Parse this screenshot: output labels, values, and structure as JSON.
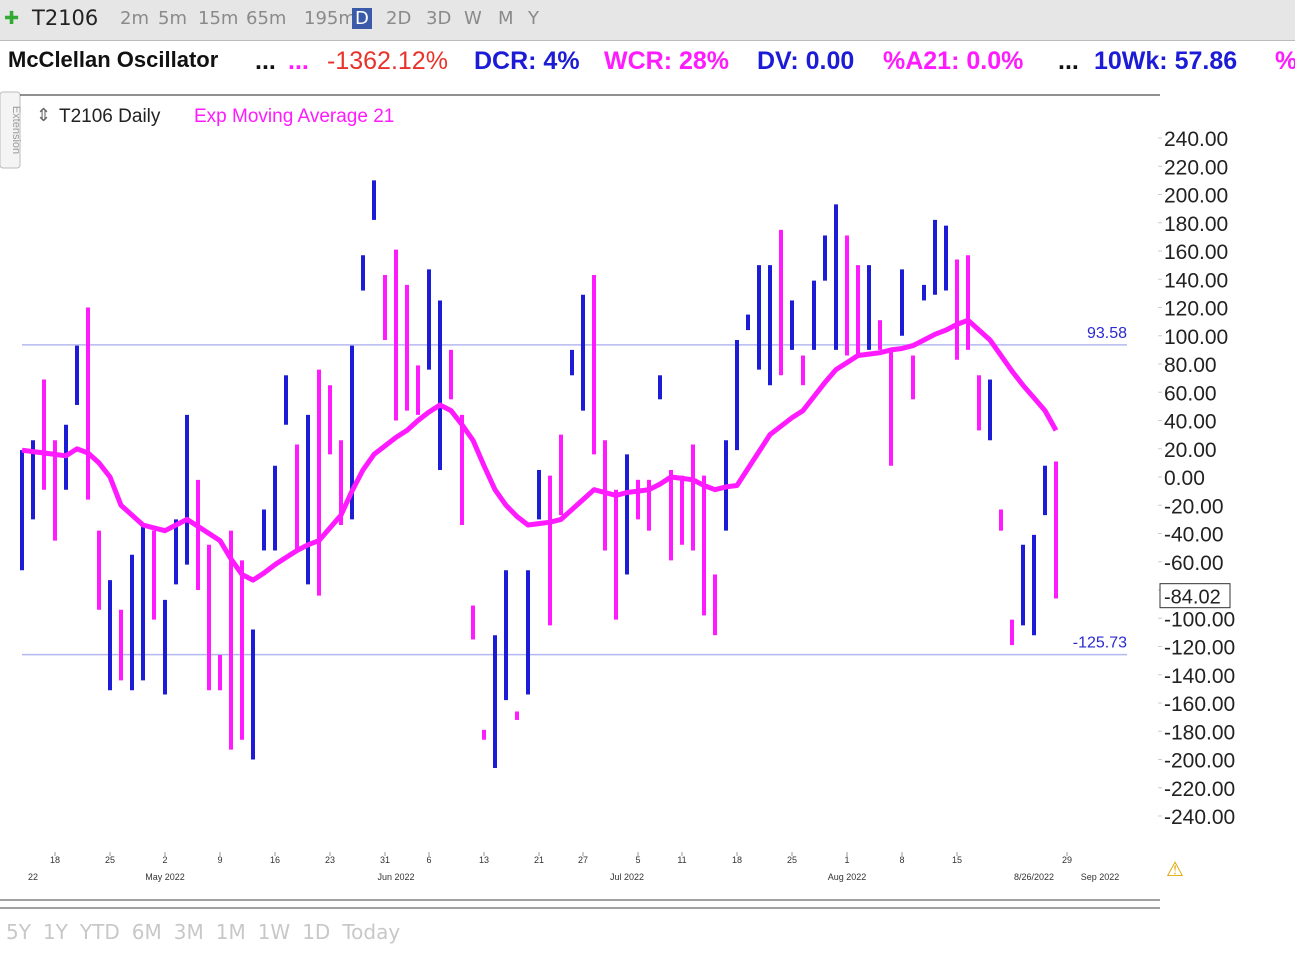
{
  "toolbar": {
    "symbol": "T2106",
    "intervals": [
      "2m",
      "5m",
      "15m",
      "65m",
      "195m",
      "D",
      "2D",
      "3D",
      "W",
      "M",
      "Y"
    ]
  },
  "header": {
    "title": "McClellan Oscillator",
    "items": [
      "...",
      "...",
      "-1362.12%",
      "DCR: 4%",
      "WCR: 28%",
      "DV: 0.00",
      "%A21: 0.0%",
      "...",
      "10Wk: 57.86",
      "%"
    ]
  },
  "side_tab": "Extension",
  "ranges": [
    "5Y",
    "1Y",
    "YTD",
    "6M",
    "3M",
    "1M",
    "1W",
    "1D",
    "Today"
  ],
  "chart_data": {
    "type": "ohlc",
    "legend_title": "T2106 Daily",
    "high": [
      19,
      26,
      69,
      26,
      37,
      93,
      120,
      -38,
      -73,
      -94,
      -55,
      -34,
      -38,
      -87,
      -30,
      44,
      -2,
      -48,
      -126,
      -38,
      -59,
      -108,
      -23,
      8,
      72,
      23,
      44,
      76,
      65,
      26,
      93,
      157,
      210,
      143,
      161,
      136,
      79,
      147,
      125,
      90,
      44,
      -91,
      -179,
      -112,
      -66,
      -166,
      -66,
      5,
      1,
      30,
      90,
      129,
      143,
      26,
      -9,
      16,
      -2,
      -2,
      72,
      5,
      1,
      23,
      1,
      -69,
      26,
      97,
      115,
      150,
      150,
      175,
      125,
      86,
      139,
      171,
      193,
      171,
      150,
      150,
      111,
      90,
      147,
      86,
      136,
      182,
      178,
      154,
      157,
      72,
      69,
      -23,
      -101,
      -48,
      -41,
      8,
      11
    ],
    "low": [
      -66,
      -30,
      -9,
      -45,
      -9,
      51,
      -16,
      -94,
      -151,
      -144,
      -151,
      -144,
      -101,
      -154,
      -76,
      -62,
      -80,
      -151,
      -151,
      -193,
      -186,
      -200,
      -52,
      -52,
      37,
      -52,
      -76,
      -84,
      16,
      -34,
      -30,
      132,
      182,
      97,
      40,
      47,
      44,
      76,
      5,
      55,
      -34,
      -115,
      -186,
      -206,
      -158,
      -172,
      -154,
      -30,
      -105,
      -27,
      72,
      47,
      16,
      -52,
      -101,
      -69,
      -30,
      -38,
      55,
      -59,
      -48,
      -52,
      -98,
      -112,
      -38,
      19,
      104,
      76,
      65,
      72,
      90,
      65,
      90,
      139,
      90,
      86,
      86,
      90,
      90,
      8,
      100,
      55,
      125,
      129,
      132,
      83,
      90,
      33,
      26,
      -38,
      -119,
      -105,
      -112,
      -27,
      -86
    ],
    "colors": [
      "#1c1cd6",
      "#1c1cd6",
      "#ff1aff",
      "#ff1aff",
      "#1c1cd6",
      "#1c1cd6",
      "#ff1aff",
      "#ff1aff",
      "#1c1cd6",
      "#ff1aff",
      "#1c1cd6",
      "#1c1cd6",
      "#ff1aff",
      "#1c1cd6",
      "#1c1cd6",
      "#1c1cd6",
      "#ff1aff",
      "#ff1aff",
      "#ff1aff",
      "#ff1aff",
      "#ff1aff",
      "#1c1cd6",
      "#1c1cd6",
      "#1c1cd6",
      "#1c1cd6",
      "#ff1aff",
      "#1c1cd6",
      "#ff1aff",
      "#ff1aff",
      "#ff1aff",
      "#1c1cd6",
      "#1c1cd6",
      "#1c1cd6",
      "#ff1aff",
      "#ff1aff",
      "#ff1aff",
      "#ff1aff",
      "#1c1cd6",
      "#1c1cd6",
      "#ff1aff",
      "#ff1aff",
      "#ff1aff",
      "#ff1aff",
      "#1c1cd6",
      "#1c1cd6",
      "#ff1aff",
      "#1c1cd6",
      "#1c1cd6",
      "#ff1aff",
      "#ff1aff",
      "#1c1cd6",
      "#1c1cd6",
      "#ff1aff",
      "#ff1aff",
      "#ff1aff",
      "#1c1cd6",
      "#ff1aff",
      "#ff1aff",
      "#1c1cd6",
      "#ff1aff",
      "#ff1aff",
      "#ff1aff",
      "#ff1aff",
      "#ff1aff",
      "#1c1cd6",
      "#1c1cd6",
      "#1c1cd6",
      "#1c1cd6",
      "#1c1cd6",
      "#ff1aff",
      "#1c1cd6",
      "#ff1aff",
      "#1c1cd6",
      "#1c1cd6",
      "#1c1cd6",
      "#ff1aff",
      "#ff1aff",
      "#1c1cd6",
      "#ff1aff",
      "#ff1aff",
      "#1c1cd6",
      "#ff1aff",
      "#1c1cd6",
      "#1c1cd6",
      "#1c1cd6",
      "#ff1aff",
      "#ff1aff",
      "#ff1aff",
      "#1c1cd6",
      "#ff1aff",
      "#ff1aff",
      "#1c1cd6",
      "#1c1cd6",
      "#1c1cd6",
      "#ff1aff"
    ],
    "series": [
      {
        "name": "Exp Moving Average 21",
        "color": "#ff1aff",
        "values": [
          19,
          18,
          17,
          16,
          15,
          20,
          17,
          10,
          0,
          -20,
          -27,
          -34,
          -36,
          -38,
          -34,
          -30,
          -35,
          -40,
          -45,
          -58,
          -69,
          -73,
          -68,
          -62,
          -57,
          -52,
          -48,
          -45,
          -36,
          -27,
          -10,
          5,
          16,
          22,
          28,
          33,
          40,
          46,
          51,
          47,
          37,
          26,
          8,
          -9,
          -20,
          -28,
          -34,
          -33,
          -32,
          -30,
          -23,
          -16,
          -9,
          -11,
          -13,
          -11,
          -10,
          -9,
          -5,
          0,
          -1,
          -2,
          -6,
          -9,
          -7,
          -6,
          6,
          18,
          30,
          36,
          42,
          47,
          57,
          67,
          76,
          81,
          86,
          87,
          88,
          90,
          91,
          93,
          97,
          101,
          104,
          108,
          111,
          104,
          97,
          86,
          75,
          65,
          56,
          47,
          33
        ]
      }
    ],
    "reference_lines": [
      {
        "value": 93.58,
        "label": "93.58"
      },
      {
        "value": -125.73,
        "label": "-125.73"
      }
    ],
    "last_value": {
      "value": -84.02,
      "label": "-84.02"
    },
    "ylim": [
      -240,
      240
    ],
    "yticks": [
      {
        "value": 240,
        "label": "240.00"
      },
      {
        "value": 220,
        "label": "220.00"
      },
      {
        "value": 200,
        "label": "200.00"
      },
      {
        "value": 180,
        "label": "180.00"
      },
      {
        "value": 160,
        "label": "160.00"
      },
      {
        "value": 140,
        "label": "140.00"
      },
      {
        "value": 120,
        "label": "120.00"
      },
      {
        "value": 100,
        "label": "100.00"
      },
      {
        "value": 80,
        "label": "80.00"
      },
      {
        "value": 60,
        "label": "60.00"
      },
      {
        "value": 40,
        "label": "40.00"
      },
      {
        "value": 20,
        "label": "20.00"
      },
      {
        "value": 0,
        "label": "0.00"
      },
      {
        "value": -20,
        "label": "-20.00"
      },
      {
        "value": -40,
        "label": "-40.00"
      },
      {
        "value": -60,
        "label": "-60.00"
      },
      {
        "value": -80,
        "label": "-80.00"
      },
      {
        "value": -100,
        "label": "-100.00"
      },
      {
        "value": -120,
        "label": "-120.00"
      },
      {
        "value": -140,
        "label": "-140.00"
      },
      {
        "value": -160,
        "label": "-160.00"
      },
      {
        "value": -180,
        "label": "-180.00"
      },
      {
        "value": -200,
        "label": "-200.00"
      },
      {
        "value": -220,
        "label": "-220.00"
      },
      {
        "value": -240,
        "label": "-240.00"
      }
    ],
    "xlim": [
      0,
      100
    ],
    "xticks": [
      {
        "value": 3,
        "label": "18"
      },
      {
        "value": 8,
        "label": "25"
      },
      {
        "value": 13,
        "label": "2"
      },
      {
        "value": 18,
        "label": "9"
      },
      {
        "value": 23,
        "label": "16"
      },
      {
        "value": 28,
        "label": "23"
      },
      {
        "value": 33,
        "label": "31"
      },
      {
        "value": 37,
        "label": "6"
      },
      {
        "value": 42,
        "label": "13"
      },
      {
        "value": 47,
        "label": "21"
      },
      {
        "value": 51,
        "label": "27"
      },
      {
        "value": 56,
        "label": "5"
      },
      {
        "value": 60,
        "label": "11"
      },
      {
        "value": 65,
        "label": "18"
      },
      {
        "value": 70,
        "label": "25"
      },
      {
        "value": 75,
        "label": "1"
      },
      {
        "value": 80,
        "label": "8"
      },
      {
        "value": 85,
        "label": "15"
      },
      {
        "value": 95,
        "label": "29"
      }
    ],
    "month_ticks": [
      {
        "value": 1,
        "label": "22"
      },
      {
        "value": 13,
        "label": "May 2022"
      },
      {
        "value": 34,
        "label": "Jun 2022"
      },
      {
        "value": 55,
        "label": "Jul 2022"
      },
      {
        "value": 75,
        "label": "Aug 2022"
      },
      {
        "value": 92,
        "label": "8/26/2022"
      },
      {
        "value": 98,
        "label": "Sep 2022"
      }
    ]
  }
}
